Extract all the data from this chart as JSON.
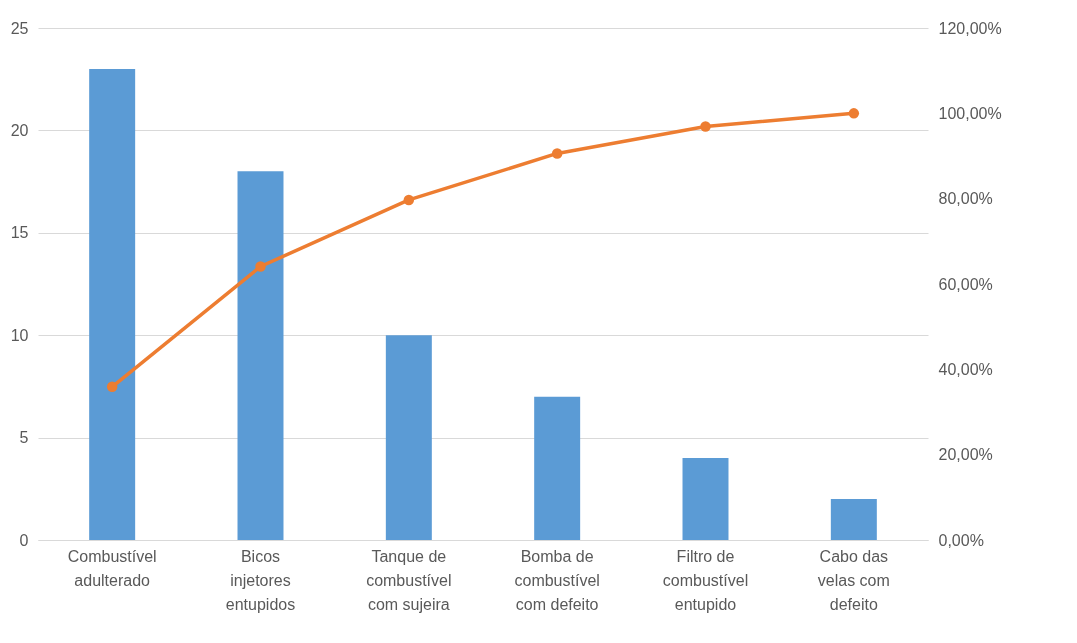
{
  "chart_data": {
    "type": "bar",
    "categories": [
      "Combustível adulterado",
      "Bicos injetores entupidos",
      "Tanque de combustível com sujeira",
      "Bomba de combustível com defeito",
      "Filtro de combustível entupido",
      "Cabo das velas com defeito"
    ],
    "series": [
      {
        "color": "#5b9bd5",
        "values": [
          23,
          18,
          10,
          7,
          4,
          2
        ]
      },
      {
        "type": "line",
        "axis": "y2",
        "color": "#ed7d31",
        "values": [
          35.9,
          64.1,
          79.7,
          90.6,
          96.9,
          100
        ]
      }
    ],
    "ylim": [
      0,
      25
    ],
    "yticks": [
      0,
      5,
      10,
      15,
      20,
      25
    ],
    "y2lim": [
      0,
      120
    ],
    "y2ticks": [
      {
        "value": 0,
        "label": "0,00%"
      },
      {
        "value": 20,
        "label": "20,00%"
      },
      {
        "value": 40,
        "label": "40,00%"
      },
      {
        "value": 60,
        "label": "60,00%"
      },
      {
        "value": 80,
        "label": "80,00%"
      },
      {
        "value": 100,
        "label": "100,00%"
      },
      {
        "value": 120,
        "label": "120,00%"
      }
    ],
    "grid": "y",
    "marker": "circle",
    "line_style": "solid"
  }
}
